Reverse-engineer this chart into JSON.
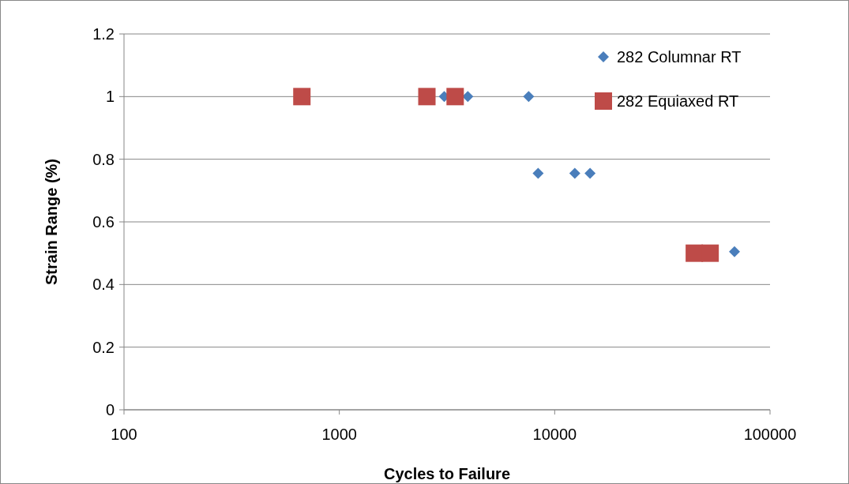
{
  "chart_data": {
    "type": "scatter",
    "xlabel": "Cycles to Failure",
    "ylabel": "Strain Range (%)",
    "log": "x",
    "xlim": [
      100,
      100000
    ],
    "xticks": [
      100,
      1000,
      10000,
      100000
    ],
    "ylim": [
      0,
      1.2
    ],
    "yticks": [
      0,
      {
        "value": 0.2,
        "label": "0.2"
      },
      {
        "value": 0.4,
        "label": "0.4"
      },
      {
        "value": 0.6,
        "label": "0.6"
      },
      {
        "value": 0.8,
        "label": "0.8"
      },
      1,
      {
        "value": 1.2,
        "label": "1.2"
      }
    ],
    "grid": "y",
    "legend": "top right",
    "series": [
      {
        "name": "282 Columnar RT",
        "color": "#4a7ebb",
        "marker": "diamond",
        "x": [
          3070,
          3950,
          7570,
          8380,
          12400,
          14600,
          68400
        ],
        "values": [
          1,
          1,
          1,
          0.755,
          0.755,
          0.755,
          0.505
        ]
      },
      {
        "name": "282 Equiaxed RT",
        "color": "#be4b48",
        "marker": "square",
        "x": [
          670,
          2550,
          3450,
          44500,
          52700
        ],
        "values": [
          1,
          1,
          1,
          0.5,
          0.5
        ]
      }
    ]
  }
}
